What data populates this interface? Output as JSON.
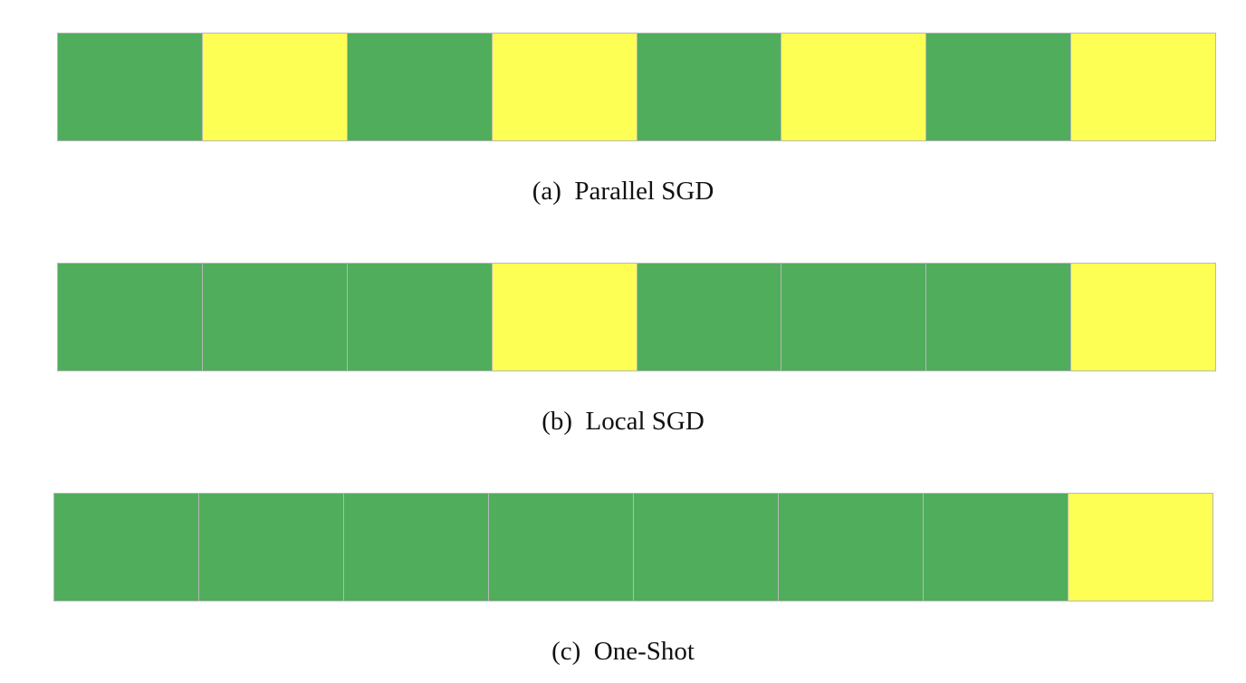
{
  "colors": {
    "green": "#50ad5c",
    "yellow": "#fdff54",
    "divider": "#b8b8b8"
  },
  "panels": [
    {
      "caption": "(a)  Parallel SGD",
      "cells": [
        "green",
        "yellow",
        "green",
        "yellow",
        "green",
        "yellow",
        "green",
        "yellow"
      ]
    },
    {
      "caption": "(b)  Local SGD",
      "cells": [
        "green",
        "green",
        "green",
        "yellow",
        "green",
        "green",
        "green",
        "yellow"
      ]
    },
    {
      "caption": "(c)  One-Shot",
      "cells": [
        "green",
        "green",
        "green",
        "green",
        "green",
        "green",
        "green",
        "yellow"
      ]
    }
  ]
}
